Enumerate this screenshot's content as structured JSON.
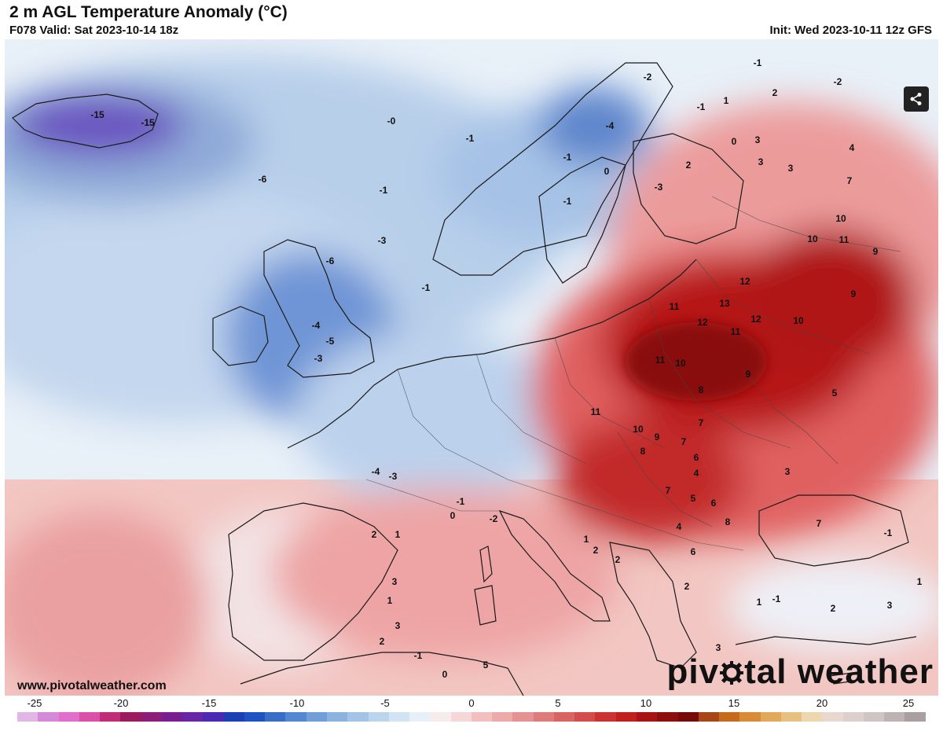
{
  "header": {
    "title": "2 m AGL Temperature Anomaly (°C)",
    "valid": "F078 Valid: Sat 2023-10-14 18z",
    "init": "Init: Wed 2023-10-11 12z GFS"
  },
  "footer": {
    "website": "www.pivotalweather.com",
    "brand_left": "piv",
    "brand_right": "tal weather"
  },
  "icons": {
    "share": "share-icon",
    "brand_gear": "gear-icon"
  },
  "colorbar": {
    "labels": [
      "-25",
      "-20",
      "-15",
      "-10",
      "-5",
      "0",
      "5",
      "10",
      "15",
      "20",
      "25"
    ],
    "colors": [
      "#e2b6e6",
      "#d48ad8",
      "#e36dcb",
      "#dc4fa8",
      "#c02c78",
      "#9c1a5e",
      "#8e1c7a",
      "#7a1c92",
      "#6a24a8",
      "#4a2ab4",
      "#1d3fb6",
      "#1f52c2",
      "#3a6dc8",
      "#5487d2",
      "#6f9ed9",
      "#8bb2e0",
      "#a4c4e7",
      "#bcd5ee",
      "#d2e4f4",
      "#e6f0f9",
      "#f6ecec",
      "#f6d6d6",
      "#f2c0c0",
      "#ecaaaa",
      "#e69292",
      "#e07b7b",
      "#da6464",
      "#d44d4d",
      "#cd3232",
      "#c21e1e",
      "#a81414",
      "#8e0d0d",
      "#760909",
      "#a8461a",
      "#c76a1c",
      "#d98c36",
      "#e3a95a",
      "#e8c182",
      "#eed6ae",
      "#e8d8d0",
      "#ddd0cc",
      "#cfc5c4",
      "#bdb3b4",
      "#aaa0a2"
    ]
  },
  "map": {
    "contour_labels": [
      {
        "text": "-15"
      },
      {
        "text": "-15"
      },
      {
        "text": "-0"
      },
      {
        "text": "-1"
      },
      {
        "text": "-1"
      },
      {
        "text": "-3"
      },
      {
        "text": "-1"
      },
      {
        "text": "-6"
      },
      {
        "text": "-6"
      },
      {
        "text": "-4"
      },
      {
        "text": "-5"
      },
      {
        "text": "-3"
      },
      {
        "text": "-1"
      },
      {
        "text": "-2"
      },
      {
        "text": "-4"
      },
      {
        "text": "-1"
      },
      {
        "text": "-2"
      },
      {
        "text": "-1"
      },
      {
        "text": "0"
      },
      {
        "text": "-3"
      },
      {
        "text": "-1"
      },
      {
        "text": "2"
      },
      {
        "text": "1"
      },
      {
        "text": "0"
      },
      {
        "text": "2"
      },
      {
        "text": "3"
      },
      {
        "text": "3"
      },
      {
        "text": "3"
      },
      {
        "text": "4"
      },
      {
        "text": "7"
      },
      {
        "text": "10"
      },
      {
        "text": "11"
      },
      {
        "text": "10"
      },
      {
        "text": "9"
      },
      {
        "text": "12"
      },
      {
        "text": "13"
      },
      {
        "text": "11"
      },
      {
        "text": "12"
      },
      {
        "text": "11"
      },
      {
        "text": "10"
      },
      {
        "text": "12"
      },
      {
        "text": "9"
      },
      {
        "text": "11"
      },
      {
        "text": "10"
      },
      {
        "text": "8"
      },
      {
        "text": "7"
      },
      {
        "text": "9"
      },
      {
        "text": "5"
      },
      {
        "text": "11"
      },
      {
        "text": "10"
      },
      {
        "text": "9"
      },
      {
        "text": "8"
      },
      {
        "text": "7"
      },
      {
        "text": "6"
      },
      {
        "text": "5"
      },
      {
        "text": "7"
      },
      {
        "text": "4"
      },
      {
        "text": "6"
      },
      {
        "text": "8"
      },
      {
        "text": "3"
      },
      {
        "text": "2"
      },
      {
        "text": "2"
      },
      {
        "text": "1"
      },
      {
        "text": "-1"
      },
      {
        "text": "0"
      },
      {
        "text": "1"
      },
      {
        "text": "-2"
      },
      {
        "text": "-4"
      },
      {
        "text": "-3"
      },
      {
        "text": "2"
      },
      {
        "text": "3"
      },
      {
        "text": "1"
      },
      {
        "text": "3"
      },
      {
        "text": "2"
      },
      {
        "text": "0"
      },
      {
        "text": "-1"
      },
      {
        "text": "5"
      },
      {
        "text": "4"
      },
      {
        "text": "6"
      },
      {
        "text": "2"
      },
      {
        "text": "3"
      },
      {
        "text": "7"
      },
      {
        "text": "-1"
      },
      {
        "text": "1"
      },
      {
        "text": "3"
      },
      {
        "text": "2"
      },
      {
        "text": "1"
      },
      {
        "text": "-1"
      }
    ]
  }
}
